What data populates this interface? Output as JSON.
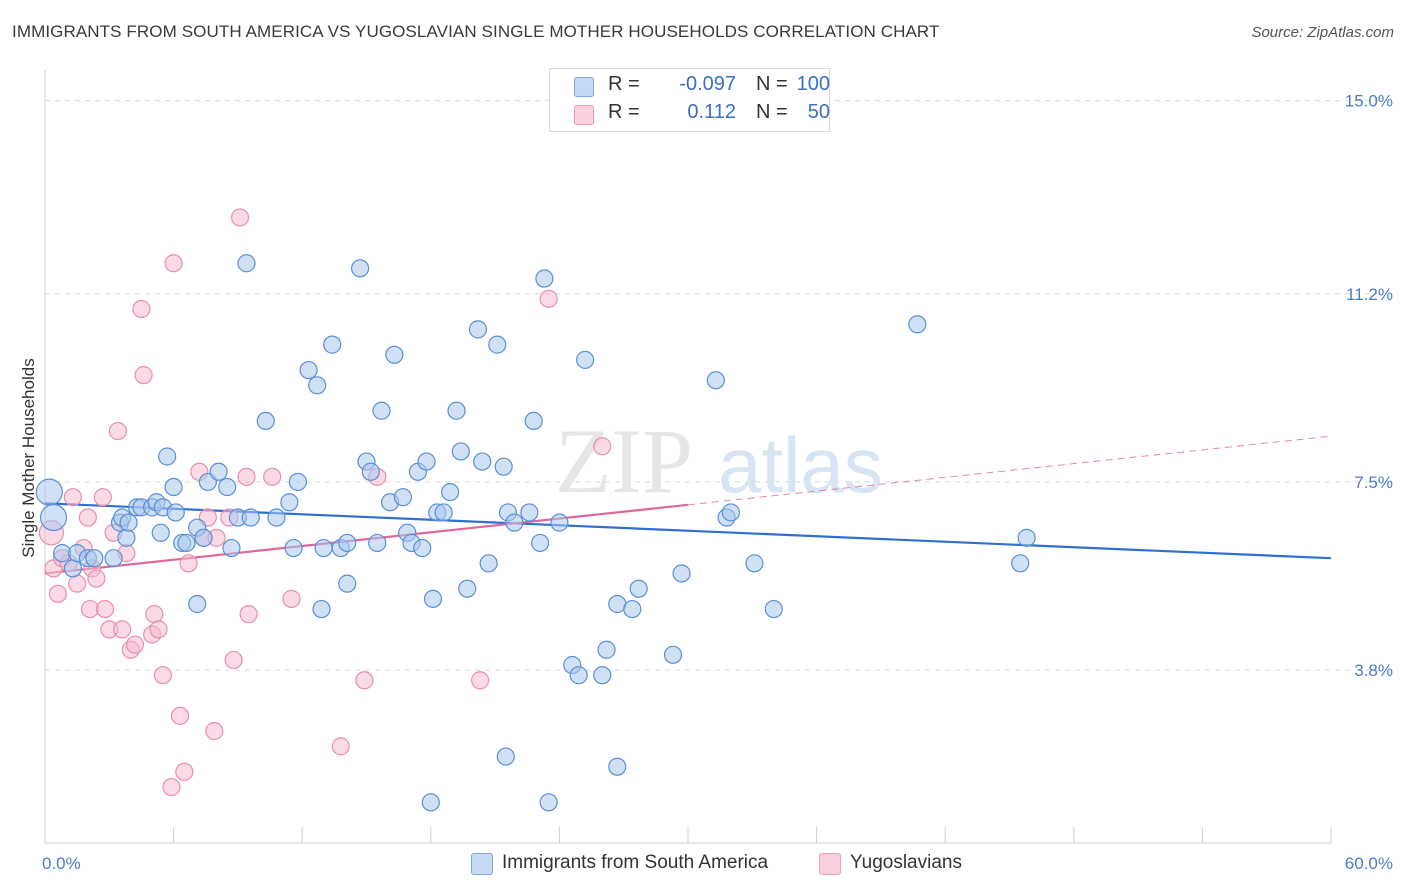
{
  "title": "IMMIGRANTS FROM SOUTH AMERICA VS YUGOSLAVIAN SINGLE MOTHER HOUSEHOLDS CORRELATION CHART",
  "source": "Source: ZipAtlas.com",
  "watermark": {
    "zip": "ZIP",
    "atlas": "atlas"
  },
  "colors": {
    "blue_fill": "#a9c8ee",
    "blue_stroke": "#5b8fd4",
    "blue_line": "#2f6fcf",
    "pink_fill": "#f6bcd0",
    "pink_stroke": "#e88fae",
    "pink_line": "#e0679a",
    "tick_text": "#4a7cc9",
    "grid": "#d8d8d8"
  },
  "legend": {
    "rows": [
      {
        "r_label": "R =",
        "r_value": "-0.097",
        "n_label": "N =",
        "n_value": "100"
      },
      {
        "r_label": "R =",
        "r_value": "0.112",
        "n_label": "N =",
        "n_value": "50"
      }
    ]
  },
  "chart_data": {
    "type": "scatter",
    "title": "IMMIGRANTS FROM SOUTH AMERICA VS YUGOSLAVIAN SINGLE MOTHER HOUSEHOLDS CORRELATION CHART",
    "xlabel": "",
    "ylabel": "Single Mother Households",
    "xlim": [
      0,
      60
    ],
    "ylim": [
      0.4,
      15.6
    ],
    "x_tick_labels": [
      "0.0%",
      "60.0%"
    ],
    "y_ticks": [
      3.8,
      7.5,
      11.2,
      15.0
    ],
    "y_tick_labels": [
      "3.8%",
      "7.5%",
      "11.2%",
      "15.0%"
    ],
    "grid": true,
    "legend_position": "top-center",
    "series": [
      {
        "name": "Immigrants from South America",
        "color": "#a9c8ee",
        "trend": {
          "x": [
            0,
            60
          ],
          "y": [
            7.08,
            6.0
          ],
          "dashed_from": null
        },
        "points": [
          [
            0.2,
            7.3
          ],
          [
            0.4,
            6.8
          ],
          [
            0.8,
            6.1
          ],
          [
            1.3,
            5.8
          ],
          [
            1.5,
            6.1
          ],
          [
            2.0,
            6.0
          ],
          [
            2.3,
            6.0
          ],
          [
            3.2,
            6.0
          ],
          [
            3.5,
            6.7
          ],
          [
            3.8,
            6.4
          ],
          [
            3.6,
            6.8
          ],
          [
            3.9,
            6.7
          ],
          [
            4.3,
            7.0
          ],
          [
            4.5,
            7.0
          ],
          [
            5.0,
            7.0
          ],
          [
            5.2,
            7.1
          ],
          [
            5.4,
            6.5
          ],
          [
            5.5,
            7.0
          ],
          [
            5.7,
            8.0
          ],
          [
            6.0,
            7.4
          ],
          [
            6.1,
            6.9
          ],
          [
            6.4,
            6.3
          ],
          [
            6.6,
            6.3
          ],
          [
            7.1,
            6.6
          ],
          [
            7.1,
            5.1
          ],
          [
            7.4,
            6.4
          ],
          [
            7.6,
            7.5
          ],
          [
            8.1,
            7.7
          ],
          [
            8.5,
            7.4
          ],
          [
            8.7,
            6.2
          ],
          [
            9.0,
            6.8
          ],
          [
            9.4,
            11.8
          ],
          [
            9.6,
            6.8
          ],
          [
            10.3,
            8.7
          ],
          [
            10.8,
            6.8
          ],
          [
            11.4,
            7.1
          ],
          [
            11.6,
            6.2
          ],
          [
            11.8,
            7.5
          ],
          [
            12.3,
            9.7
          ],
          [
            12.7,
            9.4
          ],
          [
            12.9,
            5.0
          ],
          [
            13.0,
            6.2
          ],
          [
            13.4,
            10.2
          ],
          [
            13.8,
            6.2
          ],
          [
            14.1,
            5.5
          ],
          [
            14.1,
            6.3
          ],
          [
            14.7,
            11.7
          ],
          [
            15.0,
            7.9
          ],
          [
            15.2,
            7.7
          ],
          [
            15.5,
            6.3
          ],
          [
            15.7,
            8.9
          ],
          [
            16.1,
            7.1
          ],
          [
            16.3,
            10.0
          ],
          [
            16.7,
            7.2
          ],
          [
            16.9,
            6.5
          ],
          [
            17.1,
            6.3
          ],
          [
            17.4,
            7.7
          ],
          [
            17.6,
            6.2
          ],
          [
            17.8,
            7.9
          ],
          [
            18.1,
            5.2
          ],
          [
            18.3,
            6.9
          ],
          [
            18.6,
            6.9
          ],
          [
            18.9,
            7.3
          ],
          [
            19.2,
            8.9
          ],
          [
            19.4,
            8.1
          ],
          [
            19.7,
            5.4
          ],
          [
            20.2,
            10.5
          ],
          [
            20.4,
            7.9
          ],
          [
            20.7,
            5.9
          ],
          [
            21.1,
            10.2
          ],
          [
            21.4,
            7.8
          ],
          [
            21.5,
            2.1
          ],
          [
            21.6,
            6.9
          ],
          [
            21.9,
            6.7
          ],
          [
            22.6,
            6.9
          ],
          [
            22.8,
            8.7
          ],
          [
            23.1,
            6.3
          ],
          [
            23.3,
            11.5
          ],
          [
            23.5,
            1.2
          ],
          [
            24.0,
            6.7
          ],
          [
            24.6,
            3.9
          ],
          [
            24.9,
            3.7
          ],
          [
            25.2,
            9.9
          ],
          [
            26.0,
            3.7
          ],
          [
            26.2,
            4.2
          ],
          [
            26.7,
            5.1
          ],
          [
            26.7,
            1.9
          ],
          [
            27.4,
            5.0
          ],
          [
            27.7,
            5.4
          ],
          [
            29.3,
            4.1
          ],
          [
            29.7,
            5.7
          ],
          [
            31.3,
            9.5
          ],
          [
            31.8,
            6.8
          ],
          [
            32.0,
            6.9
          ],
          [
            33.1,
            5.9
          ],
          [
            34.0,
            5.0
          ],
          [
            40.7,
            10.6
          ],
          [
            45.5,
            5.9
          ],
          [
            45.8,
            6.4
          ],
          [
            18.0,
            1.2
          ]
        ]
      },
      {
        "name": "Yugoslavians",
        "color": "#f6bcd0",
        "trend": {
          "x": [
            0,
            60
          ],
          "y": [
            5.7,
            8.4
          ],
          "dashed_from": 30
        },
        "points": [
          [
            0.3,
            6.5
          ],
          [
            0.4,
            5.8
          ],
          [
            0.6,
            5.3
          ],
          [
            0.8,
            6.0
          ],
          [
            1.1,
            5.9
          ],
          [
            1.3,
            7.2
          ],
          [
            1.5,
            5.5
          ],
          [
            1.8,
            6.2
          ],
          [
            2.0,
            6.8
          ],
          [
            2.1,
            5.0
          ],
          [
            2.2,
            5.8
          ],
          [
            2.4,
            5.6
          ],
          [
            2.7,
            7.2
          ],
          [
            2.8,
            5.0
          ],
          [
            3.0,
            4.6
          ],
          [
            3.2,
            6.5
          ],
          [
            3.4,
            8.5
          ],
          [
            3.6,
            4.6
          ],
          [
            3.8,
            6.1
          ],
          [
            4.0,
            4.2
          ],
          [
            4.2,
            4.3
          ],
          [
            4.5,
            10.9
          ],
          [
            4.6,
            9.6
          ],
          [
            5.0,
            4.5
          ],
          [
            5.1,
            4.9
          ],
          [
            5.3,
            4.6
          ],
          [
            5.5,
            3.7
          ],
          [
            5.9,
            1.5
          ],
          [
            6.0,
            11.8
          ],
          [
            6.3,
            2.9
          ],
          [
            6.5,
            1.8
          ],
          [
            6.7,
            5.9
          ],
          [
            7.2,
            7.7
          ],
          [
            7.4,
            6.4
          ],
          [
            7.6,
            6.8
          ],
          [
            7.9,
            2.6
          ],
          [
            8.0,
            6.4
          ],
          [
            8.6,
            6.8
          ],
          [
            8.8,
            4.0
          ],
          [
            9.1,
            12.7
          ],
          [
            9.4,
            7.6
          ],
          [
            9.5,
            4.9
          ],
          [
            10.6,
            7.6
          ],
          [
            11.5,
            5.2
          ],
          [
            13.8,
            2.3
          ],
          [
            14.9,
            3.6
          ],
          [
            15.5,
            7.6
          ],
          [
            20.3,
            3.6
          ],
          [
            23.5,
            11.1
          ],
          [
            26.0,
            8.2
          ]
        ]
      }
    ]
  },
  "bottom_legend": [
    "Immigrants from South America",
    "Yugoslavians"
  ]
}
